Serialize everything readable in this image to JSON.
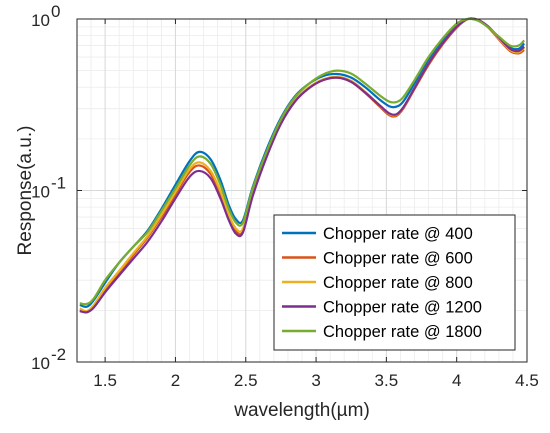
{
  "chart_data": {
    "type": "line",
    "xlabel": "wavelength(µm)",
    "ylabel": "Response(a.u.)",
    "xlim": [
      1.3,
      4.5
    ],
    "ylim": [
      0.01,
      1
    ],
    "yscale": "log",
    "grid": true,
    "minor_grid": true,
    "legend_position": "bottom-right",
    "x_ticks": [
      {
        "value": 1.5,
        "label": "1.5"
      },
      {
        "value": 2.0,
        "label": "2"
      },
      {
        "value": 2.5,
        "label": "2.5"
      },
      {
        "value": 3.0,
        "label": "3"
      },
      {
        "value": 3.5,
        "label": "3.5"
      },
      {
        "value": 4.0,
        "label": "4"
      },
      {
        "value": 4.5,
        "label": "4.5"
      }
    ],
    "y_ticks": [
      {
        "value": 0.01,
        "base": "10",
        "exp": "-2"
      },
      {
        "value": 0.1,
        "base": "10",
        "exp": "-1"
      },
      {
        "value": 1,
        "base": "10",
        "exp": "0"
      }
    ],
    "x": [
      1.32,
      1.37,
      1.42,
      1.5,
      1.6,
      1.7,
      1.8,
      1.9,
      2.0,
      2.1,
      2.17,
      2.25,
      2.32,
      2.38,
      2.43,
      2.48,
      2.55,
      2.65,
      2.75,
      2.85,
      2.95,
      3.05,
      3.15,
      3.25,
      3.35,
      3.45,
      3.52,
      3.57,
      3.62,
      3.7,
      3.8,
      3.9,
      4.0,
      4.08,
      4.15,
      4.22,
      4.3,
      4.38,
      4.44,
      4.48
    ],
    "series": [
      {
        "name": "Chopper rate @ 400",
        "color": "#0072BD",
        "values": [
          0.0215,
          0.021,
          0.023,
          0.029,
          0.038,
          0.047,
          0.058,
          0.078,
          0.108,
          0.148,
          0.168,
          0.152,
          0.115,
          0.082,
          0.068,
          0.067,
          0.105,
          0.175,
          0.265,
          0.355,
          0.42,
          0.465,
          0.478,
          0.455,
          0.4,
          0.34,
          0.31,
          0.308,
          0.33,
          0.42,
          0.58,
          0.75,
          0.92,
          1.0,
          0.98,
          0.9,
          0.78,
          0.68,
          0.67,
          0.72
        ]
      },
      {
        "name": "Chopper rate @ 600",
        "color": "#D95319",
        "values": [
          0.02,
          0.0195,
          0.021,
          0.026,
          0.033,
          0.042,
          0.053,
          0.07,
          0.095,
          0.128,
          0.14,
          0.125,
          0.095,
          0.07,
          0.058,
          0.058,
          0.095,
          0.16,
          0.245,
          0.33,
          0.395,
          0.44,
          0.455,
          0.43,
          0.37,
          0.31,
          0.275,
          0.272,
          0.3,
          0.39,
          0.54,
          0.71,
          0.89,
          1.0,
          0.99,
          0.9,
          0.76,
          0.65,
          0.63,
          0.66
        ]
      },
      {
        "name": "Chopper rate @ 800",
        "color": "#EDB120",
        "values": [
          0.0205,
          0.0198,
          0.0215,
          0.027,
          0.034,
          0.043,
          0.054,
          0.072,
          0.098,
          0.133,
          0.146,
          0.13,
          0.099,
          0.072,
          0.06,
          0.06,
          0.097,
          0.163,
          0.25,
          0.336,
          0.4,
          0.445,
          0.46,
          0.436,
          0.376,
          0.315,
          0.28,
          0.276,
          0.304,
          0.395,
          0.55,
          0.72,
          0.9,
          1.0,
          0.99,
          0.91,
          0.77,
          0.66,
          0.64,
          0.68
        ]
      },
      {
        "name": "Chopper rate @ 1200",
        "color": "#7E2F8E",
        "values": [
          0.0198,
          0.0195,
          0.0208,
          0.0255,
          0.032,
          0.04,
          0.05,
          0.066,
          0.09,
          0.12,
          0.13,
          0.118,
          0.09,
          0.067,
          0.056,
          0.057,
          0.093,
          0.158,
          0.245,
          0.33,
          0.395,
          0.44,
          0.455,
          0.43,
          0.372,
          0.315,
          0.282,
          0.278,
          0.305,
          0.395,
          0.55,
          0.72,
          0.9,
          1.0,
          0.99,
          0.91,
          0.78,
          0.67,
          0.65,
          0.69
        ]
      },
      {
        "name": "Chopper rate @ 1800",
        "color": "#77AC30",
        "values": [
          0.022,
          0.0218,
          0.0235,
          0.03,
          0.038,
          0.047,
          0.057,
          0.076,
          0.103,
          0.14,
          0.158,
          0.143,
          0.108,
          0.078,
          0.065,
          0.065,
          0.103,
          0.17,
          0.26,
          0.35,
          0.42,
          0.475,
          0.5,
          0.48,
          0.42,
          0.36,
          0.33,
          0.328,
          0.35,
          0.44,
          0.6,
          0.77,
          0.94,
          1.0,
          0.98,
          0.9,
          0.79,
          0.7,
          0.7,
          0.75
        ]
      }
    ]
  }
}
